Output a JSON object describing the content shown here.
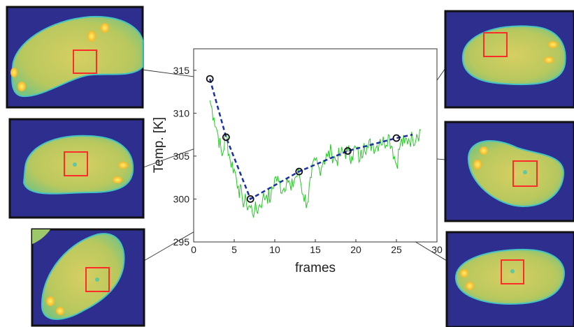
{
  "chart_data": {
    "type": "line",
    "xlabel": "frames",
    "ylabel": "Temp. [K]",
    "xlim": [
      0,
      30
    ],
    "ylim": [
      295,
      317.5
    ],
    "xticks": [
      "0",
      "5",
      "10",
      "15",
      "20",
      "25",
      "30"
    ],
    "yticks": [
      "295",
      "300",
      "305",
      "310",
      "315"
    ],
    "grid": false,
    "series": [
      {
        "style": "noisy-solid",
        "color": "#22cc22",
        "x": [
          2,
          2.5,
          3,
          3.5,
          4,
          4.5,
          5,
          5.5,
          6,
          6.5,
          7,
          7.5,
          8,
          8.5,
          9,
          9.5,
          10,
          10.5,
          11,
          11.5,
          12,
          12.5,
          13,
          13.5,
          14,
          14.5,
          15,
          15.5,
          16,
          16.5,
          17,
          17.5,
          18,
          18.5,
          19,
          19.5,
          20,
          20.5,
          21,
          21.5,
          22,
          22.5,
          23,
          23.5,
          24,
          24.5,
          25,
          25.5,
          26,
          26.5,
          27,
          27.5,
          28
        ],
        "y": [
          311.5,
          309.5,
          307.5,
          305,
          307.5,
          304.5,
          303.5,
          301.5,
          300,
          299.5,
          299,
          298.5,
          299,
          300,
          300.5,
          300,
          302.5,
          302,
          301,
          302.5,
          301,
          302.5,
          303,
          300.5,
          299.5,
          302.5,
          304.5,
          303.5,
          304.5,
          305,
          305.5,
          304.5,
          305,
          305.5,
          305.5,
          305,
          306,
          304.5,
          306.5,
          306,
          306.5,
          306,
          307,
          306.5,
          307.5,
          306,
          304,
          306.5,
          306.5,
          307,
          307,
          307.5,
          308
        ]
      },
      {
        "style": "dashed-markers",
        "color": "#1a2fa8",
        "x": [
          2,
          4,
          7,
          13,
          19,
          25,
          27
        ],
        "y": [
          314,
          307.2,
          300,
          303.2,
          305.6,
          307.1,
          307.5
        ],
        "markers": [
          true,
          true,
          true,
          true,
          true,
          true,
          false
        ]
      }
    ]
  },
  "thumbnails": [
    {
      "box_rotation": 0,
      "box_color": "#ff2a2a",
      "blob_color": "#c3cc5a",
      "background": "#2e2e8e"
    },
    {
      "box_rotation": 0,
      "box_color": "#ff2a2a",
      "blob_color": "#c3cc5a",
      "background": "#2e2e8e"
    },
    {
      "box_rotation": 0,
      "box_color": "#ff2a2a",
      "blob_color": "#c3cc5a",
      "background": "#2e2e8e"
    },
    {
      "box_rotation": 0,
      "box_color": "#ff2a2a",
      "blob_color": "#c3cc5a",
      "background": "#2e2e8e"
    },
    {
      "box_rotation": 0,
      "box_color": "#ff2a2a",
      "blob_color": "#c3cc5a",
      "background": "#2e2e8e"
    },
    {
      "box_rotation": 0,
      "box_color": "#ff2a2a",
      "blob_color": "#c3cc5a",
      "background": "#2e2e8e"
    }
  ]
}
